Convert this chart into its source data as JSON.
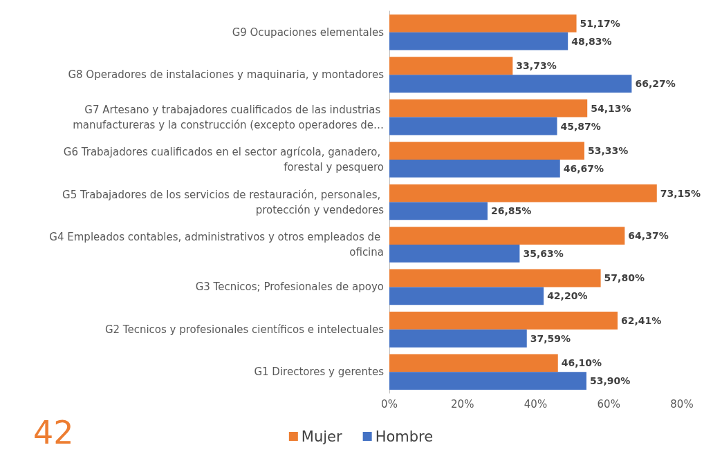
{
  "chart_data": {
    "type": "bar",
    "orientation": "horizontal",
    "categories": [
      "G9 Ocupaciones elementales",
      "G8 Operadores de instalaciones y maquinaria, y montadores",
      "G7 Artesano y trabajadores cualificados de las industrias manufactureras y la construcción (excepto operadores de…",
      "G6 Trabajadores cualificados en el sector agrícola, ganadero, forestal y pesquero",
      "G5 Trabajadores de los servicios de restauración, personales, protección y vendedores",
      "G4 Empleados contables, administrativos y otros empleados de oficina",
      "G3 Tecnicos; Profesionales de apoyo",
      "G2 Tecnicos y profesionales científicos e intelectuales",
      "G1 Directores y gerentes"
    ],
    "series": [
      {
        "name": "Mujer",
        "color": "#ed7d31",
        "values": [
          51.17,
          33.73,
          54.13,
          53.33,
          73.15,
          64.37,
          57.8,
          62.41,
          46.1
        ],
        "value_labels": [
          "51,17%",
          "33,73%",
          "54,13%",
          "53,33%",
          "73,15%",
          "64,37%",
          "57,80%",
          "62,41%",
          "46,10%"
        ]
      },
      {
        "name": "Hombre",
        "color": "#4472c4",
        "values": [
          48.83,
          66.27,
          45.87,
          46.67,
          26.85,
          35.63,
          42.2,
          37.59,
          53.9
        ],
        "value_labels": [
          "48,83%",
          "66,27%",
          "45,87%",
          "46,67%",
          "26,85%",
          "35,63%",
          "42,20%",
          "37,59%",
          "53,90%"
        ]
      }
    ],
    "xlim": [
      0,
      80
    ],
    "xticks": [
      {
        "value": 0,
        "label": "0%"
      },
      {
        "value": 20,
        "label": "20%"
      },
      {
        "value": 40,
        "label": "40%"
      },
      {
        "value": 60,
        "label": "60%"
      },
      {
        "value": 80,
        "label": "80%"
      }
    ],
    "grid": false,
    "legend": "bottom",
    "annotations": [
      "42"
    ]
  }
}
